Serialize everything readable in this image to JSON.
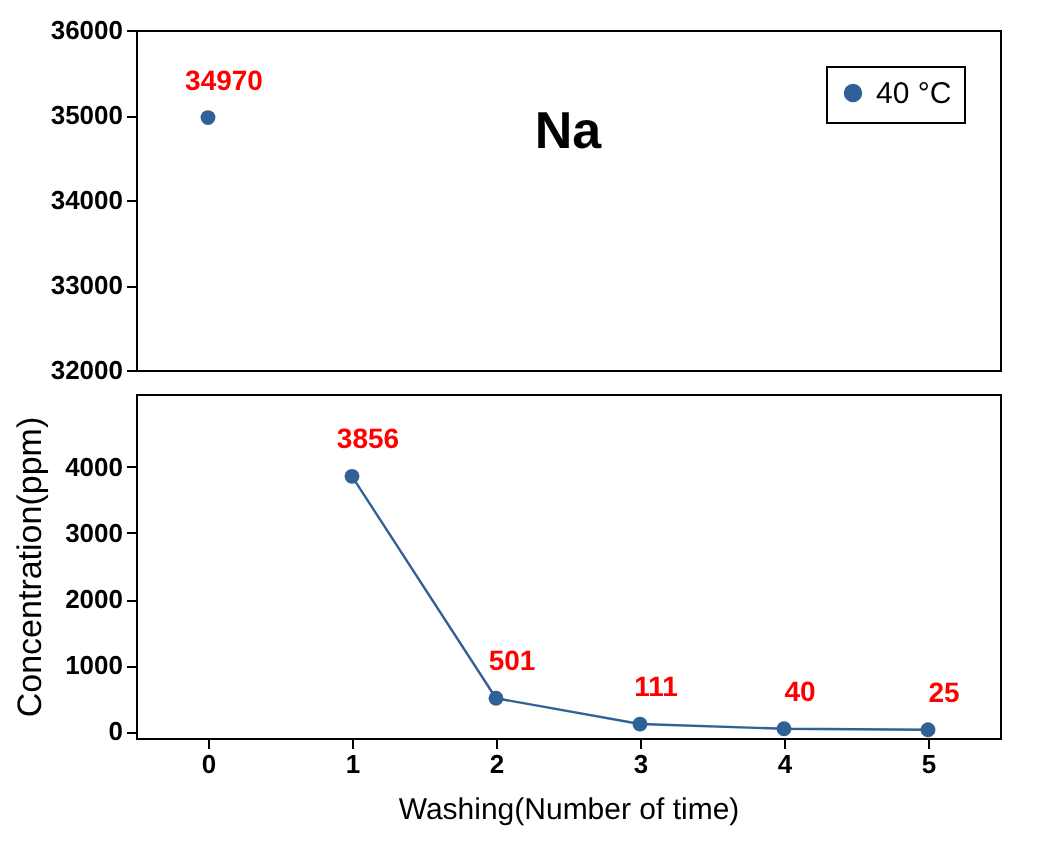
{
  "chart_data": [
    {
      "type": "line",
      "title": "Na",
      "xlim": [
        -0.5,
        5.5
      ],
      "xticks": [
        0,
        1,
        2,
        3,
        4,
        5
      ],
      "ylim": [
        32000,
        36000
      ],
      "yticks": [
        32000,
        33000,
        34000,
        35000,
        36000
      ],
      "tick_labels": "y",
      "series": [
        {
          "name": "40 °C",
          "color": "#2f6196",
          "x": [
            0
          ],
          "values": [
            34970
          ]
        }
      ],
      "data_labels": true,
      "marker": "circle",
      "legend": "top right",
      "grid": false
    },
    {
      "type": "line",
      "xlim": [
        -0.5,
        5.5
      ],
      "xticks": [
        0,
        1,
        2,
        3,
        4,
        5
      ],
      "ylim": [
        -100,
        5100
      ],
      "yticks": [
        0,
        1000,
        2000,
        3000,
        4000
      ],
      "xlabel": "Washing(Number of time)",
      "ylabel": "Concentration(ppm)",
      "series": [
        {
          "color": "#2f6196",
          "x": [
            1,
            2,
            3,
            4,
            5
          ],
          "values": [
            3856,
            501,
            111,
            40,
            25
          ]
        }
      ],
      "data_labels": true,
      "marker": "circle",
      "grid": false
    }
  ]
}
